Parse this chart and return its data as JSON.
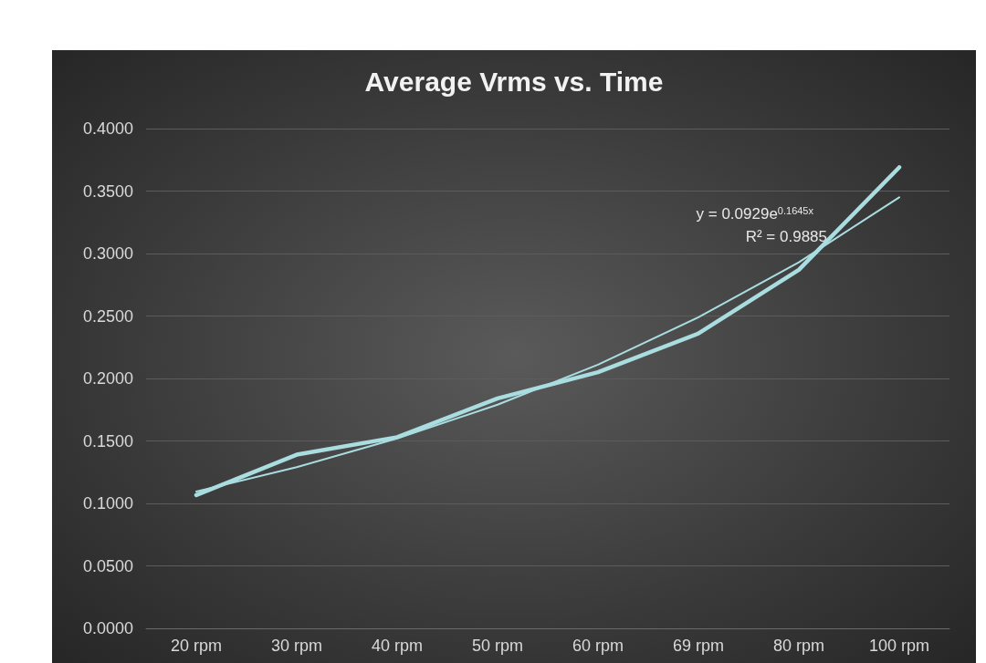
{
  "chart_data": {
    "type": "line",
    "title": "Average Vrms vs. Time",
    "categories": [
      "20 rpm",
      "30 rpm",
      "40 rpm",
      "50 rpm",
      "60 rpm",
      "69 rpm",
      "80 rpm",
      "100 rpm"
    ],
    "series": [
      {
        "color": "#a9dde0",
        "values": [
          0.1066,
          0.139,
          0.153,
          0.184,
          0.205,
          0.236,
          0.287,
          0.369
        ]
      },
      {
        "type": "line",
        "color": "#a9dde0",
        "values": [
          0.1095,
          0.129,
          0.152,
          0.179,
          0.211,
          0.249,
          0.293,
          0.345
        ]
      }
    ],
    "annotations": [
      "y = 0.0929e$^{0.1645x}$",
      "R² = 0.9885"
    ],
    "ylim": [
      0,
      0.4
    ],
    "yticks": [
      {
        "value": 0,
        "label": "0.0000"
      },
      {
        "value": 0.05,
        "label": "0.0500"
      },
      {
        "value": 0.1,
        "label": "0.1000"
      },
      {
        "value": 0.15,
        "label": "0.1500"
      },
      {
        "value": 0.2,
        "label": "0.2000"
      },
      {
        "value": 0.25,
        "label": "0.2500"
      },
      {
        "value": 0.3,
        "label": "0.3000"
      },
      {
        "value": 0.35,
        "label": "0.3500"
      },
      {
        "value": 0.4,
        "label": "0.4000"
      }
    ],
    "grid": "y",
    "marker": "none",
    "line_style": "solid"
  }
}
